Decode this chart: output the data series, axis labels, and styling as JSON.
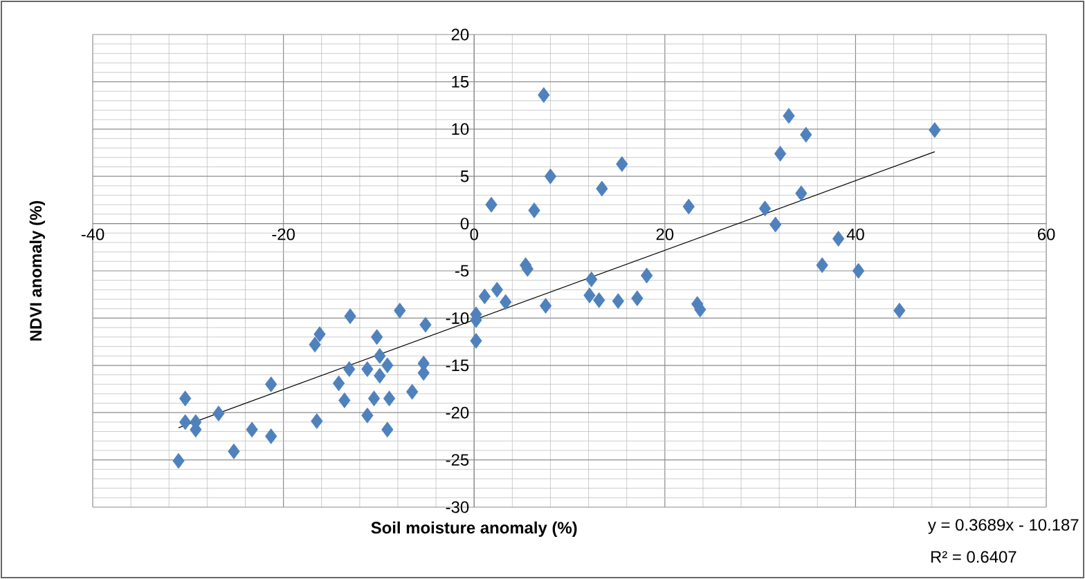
{
  "chart_data": {
    "type": "scatter",
    "xlabel": "Soil moisture anomaly (%)",
    "ylabel": "NDVI anomaly (%)",
    "xlim": [
      -40,
      60
    ],
    "ylim": [
      -30,
      20
    ],
    "xticks": [
      -40,
      -20,
      0,
      20,
      40,
      60
    ],
    "yticks": [
      -30,
      -25,
      -20,
      -15,
      -10,
      -5,
      0,
      5,
      10,
      15,
      20
    ],
    "grid": true,
    "annotations": [
      "y = 0.3689x - 10.187",
      "R² = 0.6407"
    ],
    "series": [
      {
        "marker": "diamond",
        "color": "#4f81bd",
        "x": [
          7.3,
          33.0,
          34.8,
          48.3,
          32.1,
          8.0,
          15.5,
          13.4,
          34.3,
          1.8,
          6.3,
          22.5,
          30.5,
          31.6,
          38.2,
          36.5,
          40.3,
          44.6,
          5.4,
          5.6,
          18.1,
          12.3,
          2.4,
          1.1,
          3.3,
          12.1,
          13.1,
          15.1,
          17.1,
          7.5,
          23.4,
          23.7,
          0.2,
          0.2,
          -5.1,
          -7.8,
          0.2,
          -13.0,
          -10.2,
          -16.2,
          -16.7,
          -9.9,
          -5.3,
          -13.1,
          -11.2,
          -9.1,
          -9.9,
          -14.2,
          -5.3,
          -6.5,
          -13.6,
          -10.5,
          -8.9,
          -11.2,
          -9.1,
          -16.5,
          -21.3,
          -26.8,
          -30.3,
          -30.3,
          -29.2,
          -29.2,
          -23.3,
          -21.3,
          -25.2,
          -31.0
        ],
        "values": [
          13.6,
          11.4,
          9.4,
          9.9,
          7.4,
          5.0,
          6.3,
          3.7,
          3.2,
          2.0,
          1.4,
          1.8,
          1.6,
          -0.1,
          -1.6,
          -4.4,
          -5.0,
          -9.2,
          -4.4,
          -4.8,
          -5.5,
          -5.9,
          -7.0,
          -7.7,
          -8.3,
          -7.6,
          -8.1,
          -8.2,
          -7.9,
          -8.7,
          -8.5,
          -9.1,
          -9.6,
          -10.2,
          -10.7,
          -9.2,
          -12.4,
          -9.8,
          -12.0,
          -11.7,
          -12.8,
          -14.0,
          -14.8,
          -15.4,
          -15.4,
          -15.0,
          -16.1,
          -16.9,
          -15.8,
          -17.8,
          -18.7,
          -18.5,
          -18.5,
          -20.3,
          -21.8,
          -20.9,
          -17.0,
          -20.1,
          -18.5,
          -21.0,
          -21.8,
          -21.0,
          -21.8,
          -22.5,
          -24.1,
          -25.1
        ]
      },
      {
        "type": "line",
        "marker": "none",
        "color": "#000000",
        "x": [
          -31.0,
          48.3
        ],
        "values": [
          -21.6,
          7.6
        ]
      }
    ]
  }
}
